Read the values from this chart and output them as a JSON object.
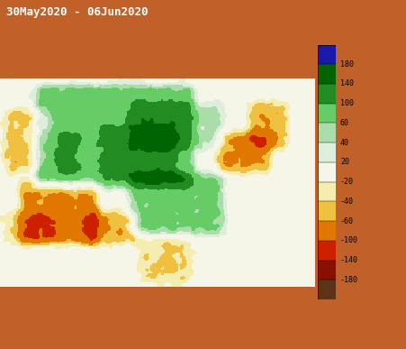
{
  "title": "30May2020 - 06Jun2020",
  "title_bg_color": "#C1612A",
  "title_text_color": "#FFFFFF",
  "title_fontsize": 9,
  "ocean_color": "#ADD8E6",
  "land_color": "#FFFFFF",
  "fig_bg_color": "#C1612A",
  "bottom_bar_color": "#C1612A",
  "lon_min": -104.5,
  "lon_max": -64.5,
  "lat_min": 23.5,
  "lat_max": 50.0,
  "figsize": [
    4.52,
    3.87
  ],
  "dpi": 100,
  "colorbar_colors": [
    "#1A1AAA",
    "#006400",
    "#228B22",
    "#66CC66",
    "#AADDAA",
    "#DDEEDD",
    "#F5F5E8",
    "#F5EDB0",
    "#F0C040",
    "#E07800",
    "#CC2000",
    "#881000",
    "#5C3317"
  ],
  "colorbar_boundaries": [
    -999,
    -180,
    -140,
    -100,
    -60,
    -40,
    -20,
    20,
    40,
    60,
    100,
    140,
    180,
    999
  ],
  "colorbar_tick_labels": [
    "180",
    "140",
    "100",
    "60",
    "40",
    "20",
    "-20",
    "-40",
    "-60",
    "-100",
    "-140",
    "-180"
  ],
  "colorbar_tick_values": [
    180,
    140,
    100,
    60,
    40,
    20,
    -20,
    -40,
    -60,
    -100,
    -140,
    -180
  ]
}
